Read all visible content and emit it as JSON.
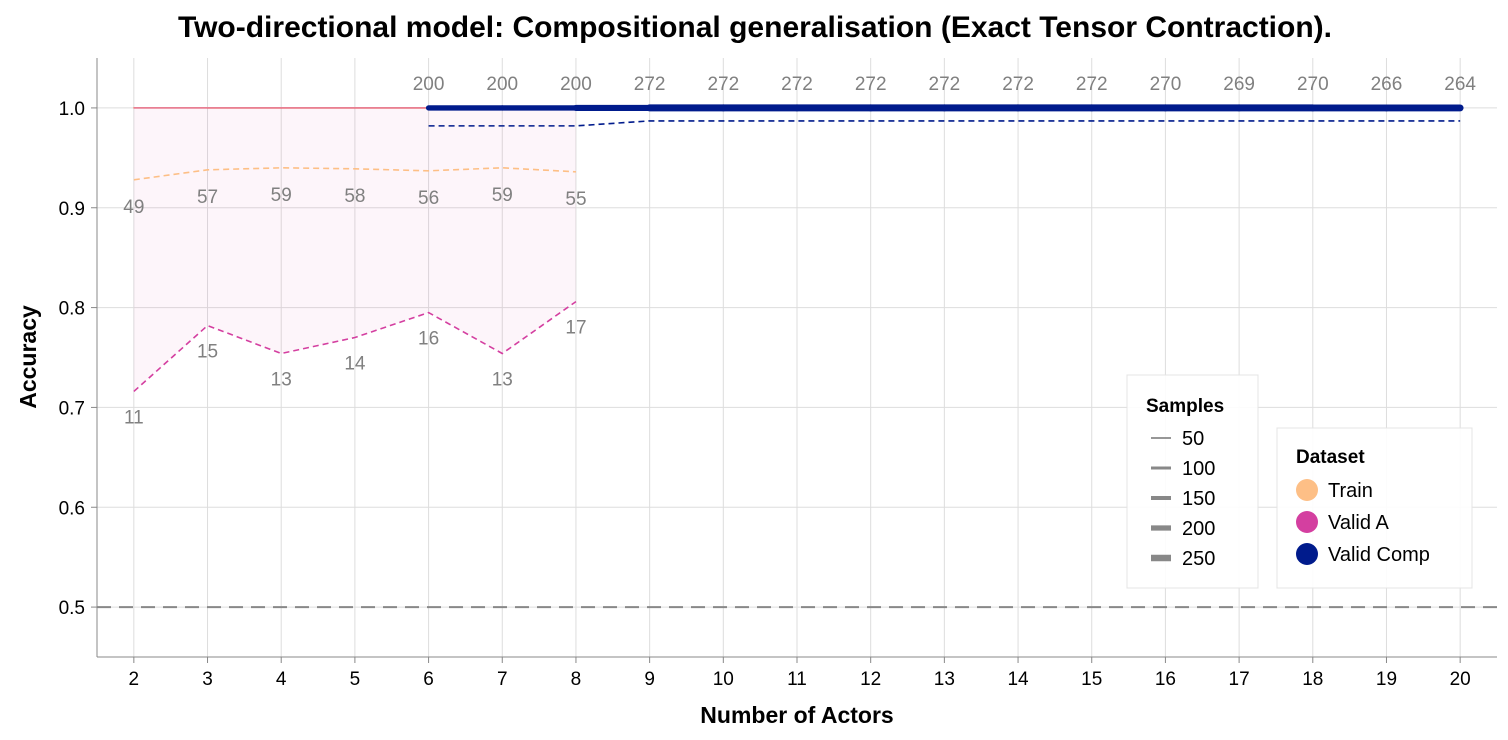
{
  "chart_data": {
    "type": "line",
    "title": "Two-directional model: Compositional generalisation (Exact Tensor Contraction).",
    "xlabel": "Number of Actors",
    "ylabel": "Accuracy",
    "x_ticks": [
      2,
      3,
      4,
      5,
      6,
      7,
      8,
      9,
      10,
      11,
      12,
      13,
      14,
      15,
      16,
      17,
      18,
      19,
      20
    ],
    "xlim": [
      1.5,
      20.5
    ],
    "y_ticks": [
      "0.5",
      "0.6",
      "0.7",
      "0.8",
      "0.9",
      "1.0"
    ],
    "ylim": [
      0.45,
      1.05
    ],
    "reference_line": 0.5,
    "series": [
      {
        "name": "Train",
        "color": "#fdbf86",
        "x": [
          2,
          3,
          4,
          5,
          6,
          7,
          8
        ],
        "mean": [
          1.0,
          1.0,
          1.0,
          1.0,
          1.0,
          1.0,
          1.0
        ],
        "dashed": [
          0.928,
          0.938,
          0.94,
          0.939,
          0.937,
          0.94,
          0.936
        ],
        "samples": [
          49,
          57,
          59,
          58,
          56,
          59,
          55
        ],
        "sample_labels": [
          "49",
          "57",
          "59",
          "58",
          "56",
          "59",
          "55"
        ]
      },
      {
        "name": "Valid A",
        "color": "#d43fa0",
        "x": [
          2,
          3,
          4,
          5,
          6,
          7,
          8
        ],
        "mean": [
          1.0,
          1.0,
          1.0,
          1.0,
          1.0,
          1.0,
          1.0
        ],
        "dashed": [
          0.716,
          0.782,
          0.754,
          0.77,
          0.795,
          0.754,
          0.806
        ],
        "band_lower": [
          0.716,
          0.782,
          0.754,
          0.77,
          0.795,
          0.754,
          0.806
        ],
        "band_upper": [
          1.0,
          1.0,
          1.0,
          1.0,
          1.0,
          1.0,
          1.0
        ],
        "samples": [
          11,
          15,
          13,
          14,
          16,
          13,
          17
        ],
        "sample_labels": [
          "11",
          "15",
          "13",
          "14",
          "16",
          "13",
          "17"
        ]
      },
      {
        "name": "Valid Comp",
        "color": "#001b8c",
        "x": [
          6,
          7,
          8,
          9,
          10,
          11,
          12,
          13,
          14,
          15,
          16,
          17,
          18,
          19,
          20
        ],
        "mean": [
          1.0,
          1.0,
          1.0,
          1.0,
          1.0,
          1.0,
          1.0,
          1.0,
          1.0,
          1.0,
          1.0,
          1.0,
          1.0,
          1.0,
          1.0
        ],
        "dashed": [
          0.982,
          0.982,
          0.982,
          0.987,
          0.987,
          0.987,
          0.987,
          0.987,
          0.987,
          0.987,
          0.987,
          0.987,
          0.987,
          0.987,
          0.987
        ],
        "samples": [
          200,
          200,
          200,
          272,
          272,
          272,
          272,
          272,
          272,
          272,
          270,
          269,
          270,
          266,
          264
        ],
        "sample_labels": [
          "200",
          "200",
          "200",
          "272",
          "272",
          "272",
          "272",
          "272",
          "272",
          "272",
          "270",
          "269",
          "270",
          "266",
          "264"
        ]
      }
    ],
    "legend_samples": {
      "title": "Samples",
      "entries": [
        {
          "label": "50",
          "value": 50
        },
        {
          "label": "100",
          "value": 100
        },
        {
          "label": "150",
          "value": 150
        },
        {
          "label": "200",
          "value": 200
        },
        {
          "label": "250",
          "value": 250
        }
      ]
    },
    "legend_dataset": {
      "title": "Dataset",
      "entries": [
        {
          "label": "Train",
          "color": "#fdbf86"
        },
        {
          "label": "Valid A",
          "color": "#d43fa0"
        },
        {
          "label": "Valid Comp",
          "color": "#001b8c"
        }
      ]
    },
    "grid": true
  }
}
